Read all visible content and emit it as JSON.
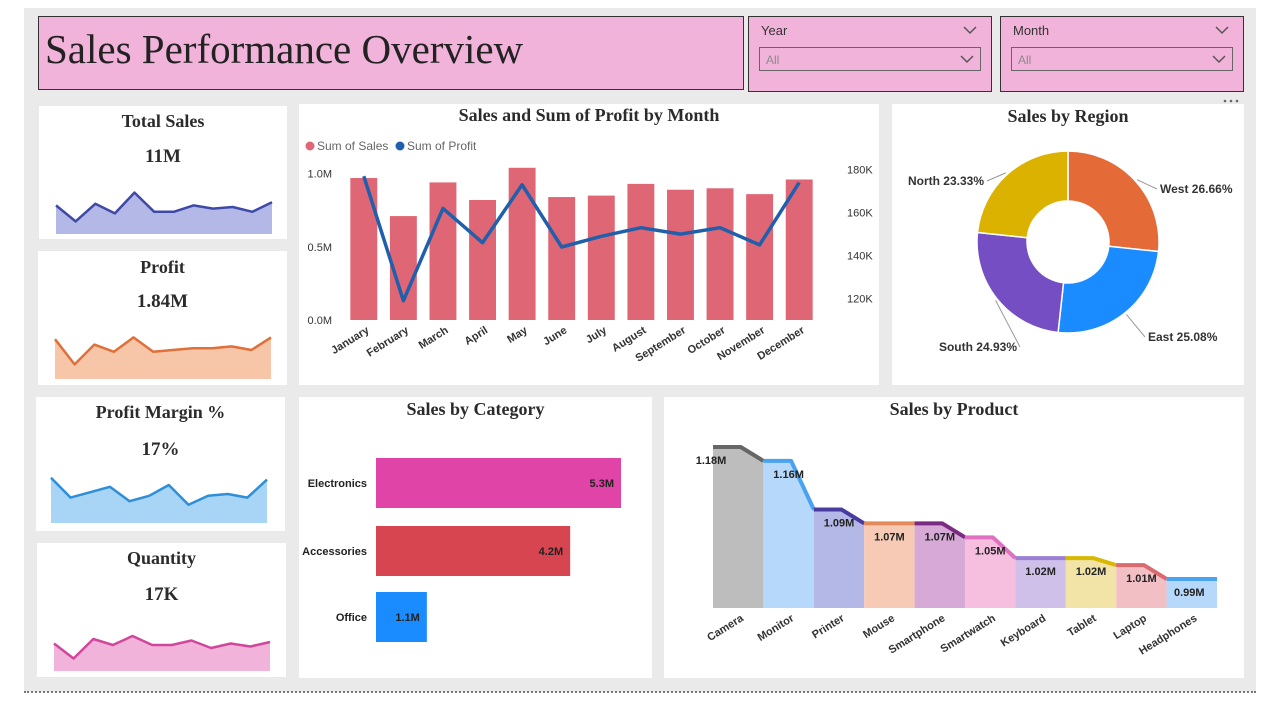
{
  "header": {
    "title": "Sales Performance Overview"
  },
  "filters": [
    {
      "label": "Year",
      "value": "All"
    },
    {
      "label": "Month",
      "value": "All"
    }
  ],
  "kpis": [
    {
      "title": "Total Sales",
      "value": "11M",
      "color": "#3f4aa8",
      "fill": "#b3b8e6",
      "trend": [
        0.55,
        0.05,
        0.6,
        0.3,
        0.95,
        0.35,
        0.35,
        0.55,
        0.45,
        0.5,
        0.35,
        0.65
      ]
    },
    {
      "title": "Profit",
      "value": "1.84M",
      "color": "#e0703a",
      "fill": "#f7c5a8",
      "trend": [
        0.8,
        0.1,
        0.65,
        0.45,
        0.85,
        0.45,
        0.5,
        0.55,
        0.55,
        0.6,
        0.5,
        0.85
      ]
    },
    {
      "title": "Profit Margin %",
      "value": "17%",
      "color": "#2e8fd8",
      "fill": "#a8d4f5",
      "trend": [
        0.95,
        0.4,
        0.55,
        0.7,
        0.3,
        0.45,
        0.75,
        0.2,
        0.45,
        0.5,
        0.4,
        0.9
      ]
    },
    {
      "title": "Quantity",
      "value": "17K",
      "color": "#d0479c",
      "fill": "#f2b3db",
      "trend": [
        0.55,
        0.05,
        0.7,
        0.5,
        0.8,
        0.5,
        0.5,
        0.65,
        0.4,
        0.55,
        0.45,
        0.6
      ]
    }
  ],
  "chart_data": [
    {
      "type": "bar",
      "title": "Sales and Sum of Profit by Month",
      "legend_position": "top-left",
      "categories": [
        "January",
        "February",
        "March",
        "April",
        "May",
        "June",
        "July",
        "August",
        "September",
        "October",
        "November",
        "December"
      ],
      "series": [
        {
          "name": "Sum of Sales",
          "kind": "bar",
          "axis": "left",
          "color": "#df6674",
          "values": [
            0.97,
            0.71,
            0.94,
            0.82,
            1.04,
            0.84,
            0.85,
            0.93,
            0.89,
            0.9,
            0.86,
            0.96
          ]
        },
        {
          "name": "Sum of Profit",
          "kind": "line",
          "axis": "right",
          "color": "#1f5fac",
          "values": [
            177,
            119,
            162,
            146,
            173,
            144,
            149,
            153,
            150,
            153,
            145,
            174
          ]
        }
      ],
      "y_left": {
        "min": 0,
        "max": 1.1,
        "ticks": [
          0,
          0.5,
          1.0
        ],
        "tick_labels": [
          "0.0M",
          "0.5M",
          "1.0M"
        ]
      },
      "y_right": {
        "min": 110,
        "max": 185,
        "ticks": [
          120,
          140,
          160,
          180
        ],
        "tick_labels": [
          "120K",
          "140K",
          "160K",
          "180K"
        ]
      }
    },
    {
      "type": "pie",
      "title": "Sales by Region",
      "slices": [
        {
          "name": "West",
          "value": 26.66,
          "label": "West 26.66%",
          "color": "#e46a37"
        },
        {
          "name": "East",
          "value": 25.08,
          "label": "East 25.08%",
          "color": "#1a8cff"
        },
        {
          "name": "South",
          "value": 24.93,
          "label": "South 24.93%",
          "color": "#744ec2"
        },
        {
          "name": "North",
          "value": 23.33,
          "label": "North 23.33%",
          "color": "#dbb200"
        }
      ]
    },
    {
      "type": "bar",
      "orientation": "horizontal",
      "title": "Sales by Category",
      "categories": [
        "Electronics",
        "Accessories",
        "Office"
      ],
      "values": [
        5.3,
        4.2,
        1.1
      ],
      "labels": [
        "5.3M",
        "4.2M",
        "1.1M"
      ],
      "colors": [
        "#e044a7",
        "#d64550",
        "#1a8cff"
      ]
    },
    {
      "type": "area",
      "title": "Sales by Product",
      "categories": [
        "Camera",
        "Monitor",
        "Printer",
        "Mouse",
        "Smartphone",
        "Smartwatch",
        "Keyboard",
        "Tablet",
        "Laptop",
        "Headphones"
      ],
      "values": [
        1.18,
        1.16,
        1.09,
        1.07,
        1.07,
        1.05,
        1.02,
        1.02,
        1.01,
        0.99
      ],
      "labels": [
        "1.18M",
        "1.16M",
        "1.09M",
        "1.07M",
        "1.07M",
        "1.05M",
        "1.02M",
        "1.02M",
        "1.01M",
        "0.99M"
      ],
      "fill_colors": [
        "#bdbdbd",
        "#b5d8fb",
        "#b3b8e6",
        "#f6cab4",
        "#d6a9d6",
        "#f6bfe0",
        "#cfc0ea",
        "#f2e3a6",
        "#f2c0c4",
        "#b5d8fb"
      ],
      "line_colors": [
        "#666666",
        "#4aa3f0",
        "#4a3c9e",
        "#e38a5a",
        "#7a2c82",
        "#e070c0",
        "#9b7fd4",
        "#d8b800",
        "#d86a70",
        "#4aa3f0"
      ]
    }
  ]
}
